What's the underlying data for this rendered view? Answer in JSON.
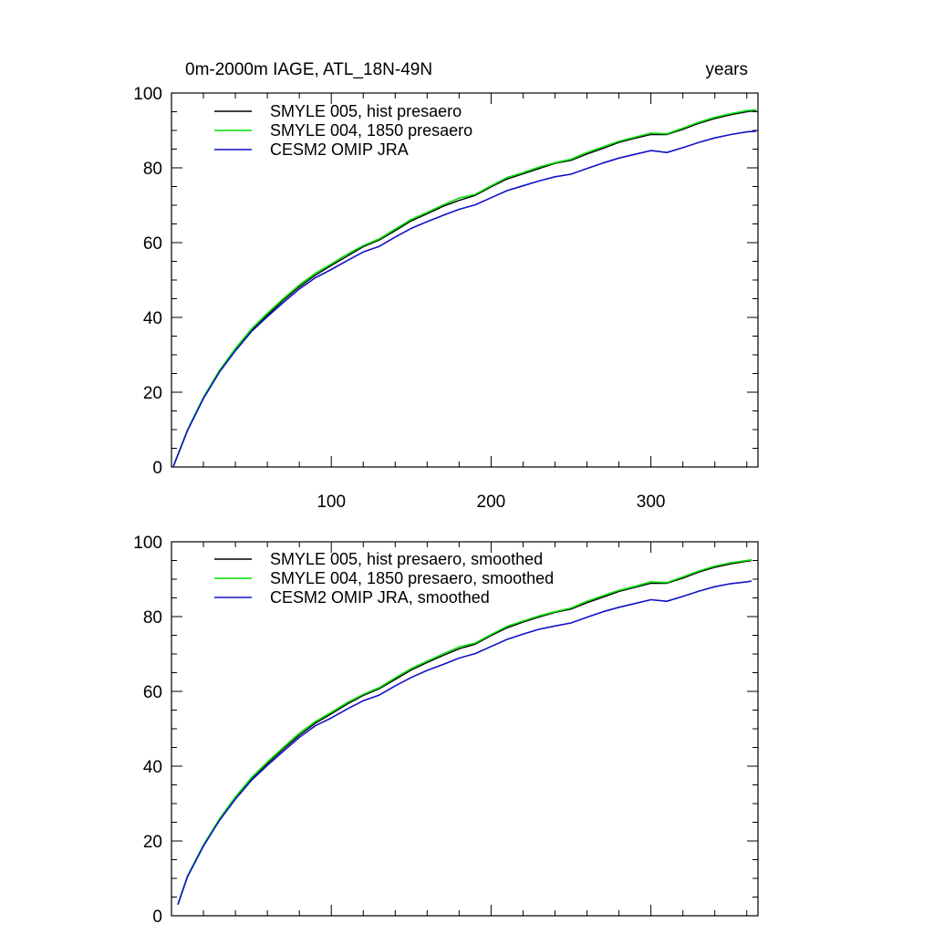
{
  "chart_data": [
    {
      "type": "line",
      "title": "0m-2000m IAGE, ATL_18N-49N",
      "units": "years",
      "xlabel": "",
      "ylabel": "",
      "xlim": [
        0,
        367
      ],
      "ylim": [
        0,
        100
      ],
      "xticks": [
        100,
        200,
        300
      ],
      "yticks": [
        0,
        20,
        40,
        60,
        80,
        100
      ],
      "grid": false,
      "legend_position": "top-left",
      "x": [
        1,
        10,
        20,
        30,
        40,
        50,
        60,
        70,
        80,
        90,
        100,
        110,
        120,
        130,
        140,
        150,
        160,
        170,
        180,
        190,
        200,
        210,
        220,
        230,
        240,
        250,
        260,
        270,
        280,
        290,
        300,
        310,
        320,
        330,
        340,
        350,
        360,
        366
      ],
      "series": [
        {
          "name": "SMYLE 005, hist presaero",
          "color": "#000000",
          "values": [
            0,
            9.8,
            18.5,
            25.6,
            31.4,
            36.5,
            40.6,
            44.6,
            48.2,
            51.3,
            53.9,
            56.4,
            58.9,
            60.7,
            63.2,
            65.8,
            67.7,
            69.7,
            71.3,
            72.6,
            74.9,
            77.0,
            78.4,
            79.8,
            81.2,
            82.0,
            83.7,
            85.2,
            86.8,
            87.9,
            88.9,
            88.9,
            90.3,
            91.9,
            93.2,
            94.2,
            95.0,
            95.3
          ]
        },
        {
          "name": "SMYLE 004, 1850 presaero",
          "color": "#00e000",
          "values": [
            0,
            9.9,
            18.6,
            25.8,
            31.7,
            36.9,
            41.1,
            45.0,
            48.7,
            51.8,
            54.3,
            56.9,
            59.2,
            61.0,
            63.6,
            66.2,
            68.1,
            70.1,
            71.9,
            72.9,
            75.2,
            77.4,
            78.7,
            80.2,
            81.4,
            82.3,
            84.1,
            85.6,
            87.1,
            88.2,
            89.3,
            89.1,
            90.6,
            92.2,
            93.5,
            94.5,
            95.3,
            95.5
          ]
        },
        {
          "name": "CESM2 OMIP JRA",
          "color": "#1010c8",
          "values": [
            0,
            9.7,
            18.3,
            25.4,
            31.1,
            36.2,
            40.2,
            44.0,
            47.6,
            50.6,
            52.8,
            55.2,
            57.5,
            59.0,
            61.5,
            63.8,
            65.6,
            67.3,
            68.9,
            70.1,
            72.0,
            73.9,
            75.2,
            76.5,
            77.6,
            78.3,
            79.8,
            81.3,
            82.6,
            83.6,
            84.6,
            84.1,
            85.4,
            86.8,
            88.0,
            88.9,
            89.6,
            89.8
          ]
        }
      ]
    },
    {
      "type": "line",
      "title": "",
      "xlabel": "",
      "ylabel": "",
      "xlim": [
        0,
        367
      ],
      "ylim": [
        0,
        100
      ],
      "xticks": [
        100,
        200,
        300
      ],
      "yticks": [
        0,
        20,
        40,
        60,
        80,
        100
      ],
      "grid": false,
      "legend_position": "top-left",
      "x": [
        4,
        10,
        20,
        30,
        40,
        50,
        60,
        70,
        80,
        90,
        100,
        110,
        120,
        130,
        140,
        150,
        160,
        170,
        180,
        190,
        200,
        210,
        220,
        230,
        240,
        250,
        260,
        270,
        280,
        290,
        300,
        310,
        320,
        330,
        340,
        350,
        360,
        363
      ],
      "series": [
        {
          "name": "SMYLE 005, hist presaero, smoothed",
          "color": "#000000",
          "values": [
            3,
            10.5,
            18.8,
            25.7,
            31.5,
            36.6,
            40.7,
            44.6,
            48.3,
            51.5,
            54.0,
            56.6,
            58.9,
            60.7,
            63.2,
            65.7,
            67.7,
            69.6,
            71.4,
            72.6,
            74.9,
            77.0,
            78.5,
            79.9,
            81.1,
            82.0,
            83.7,
            85.2,
            86.7,
            87.8,
            88.9,
            88.9,
            90.3,
            91.9,
            93.2,
            94.1,
            94.8,
            95.0
          ]
        },
        {
          "name": "SMYLE 004, 1850 presaero, smoothed",
          "color": "#00e000",
          "values": [
            3,
            10.6,
            18.9,
            25.9,
            31.8,
            36.9,
            41.1,
            45.0,
            48.8,
            51.9,
            54.4,
            57.0,
            59.2,
            61.0,
            63.6,
            66.1,
            68.1,
            70.0,
            71.9,
            72.9,
            75.2,
            77.4,
            78.8,
            80.2,
            81.3,
            82.3,
            84.1,
            85.6,
            87.0,
            88.1,
            89.3,
            89.1,
            90.6,
            92.2,
            93.5,
            94.4,
            95.0,
            95.2
          ]
        },
        {
          "name": "CESM2 OMIP JRA, smoothed",
          "color": "#1010c8",
          "values": [
            3,
            10.4,
            18.6,
            25.5,
            31.2,
            36.2,
            40.2,
            44.0,
            47.7,
            50.8,
            52.9,
            55.3,
            57.5,
            59.0,
            61.5,
            63.7,
            65.6,
            67.2,
            68.9,
            70.1,
            72.0,
            73.9,
            75.3,
            76.6,
            77.5,
            78.3,
            79.8,
            81.3,
            82.5,
            83.5,
            84.5,
            84.1,
            85.4,
            86.8,
            88.0,
            88.8,
            89.3,
            89.5
          ]
        }
      ]
    }
  ]
}
